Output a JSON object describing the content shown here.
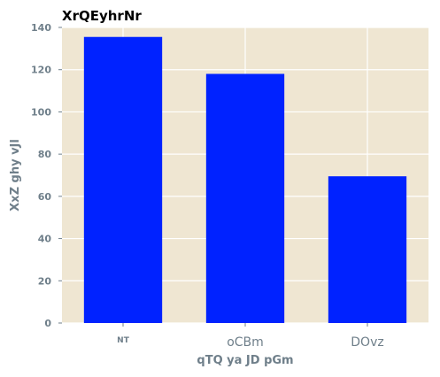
{
  "chart_data": {
    "type": "bar",
    "title": "XrQEyhrNr",
    "xlabel": "qTQ  ya JD pGm",
    "ylabel": "XxZ ghy vJl",
    "categories": [
      "NT",
      "oCBm",
      "DOvz"
    ],
    "values": [
      135.5,
      118,
      69.5
    ],
    "ylim": [
      0,
      140
    ],
    "yticks": [
      0,
      20,
      40,
      60,
      80,
      100,
      120,
      140
    ],
    "grid": true,
    "colors": {
      "bar": "#0022ff",
      "plot_background": "#efe6d2",
      "grid": "#ffffff",
      "tick_text": "#6f7f8a"
    }
  }
}
